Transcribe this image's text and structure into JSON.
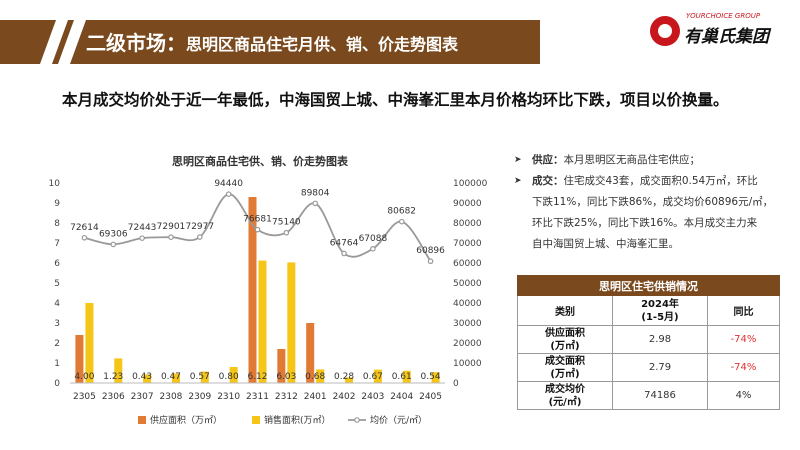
{
  "header": {
    "title_main": "二级市场：",
    "title_sub": "思明区商品住宅月供、销、价走势图表"
  },
  "brand": {
    "name_en": "YOURCHOICE GROUP",
    "name_cn": "有巢氏集团"
  },
  "headline": "本月成交均价处于近一年最低，中海国贸上城、中海峯汇里本月价格均环比下跌，项目以价换量。",
  "notes": {
    "supply_label": "供应：",
    "supply_text": "本月思明区无商品住宅供应；",
    "deal_label": "成交：",
    "deal_lines": [
      "住宅成交43套，成交面积0.54万㎡，环比",
      "下跌11%，同比下跌86%，成交均价60896元/㎡，",
      "环比下跌25%，同比下跌16%。本月成交主力来",
      "自中海国贸上城、中海峯汇里。"
    ]
  },
  "table": {
    "title": "思明区住宅供销情况",
    "headers": [
      "类别",
      "2024年\n(1-5月)",
      "同比"
    ],
    "rows": [
      {
        "label": "供应面积\n(万㎡)",
        "value": "2.98",
        "yoy": "-74%"
      },
      {
        "label": "成交面积\n(万㎡)",
        "value": "2.79",
        "yoy": "-74%"
      },
      {
        "label": "成交均价\n(元/㎡)",
        "value": "74186",
        "yoy": "4%"
      }
    ]
  },
  "chart_data": {
    "type": "bar",
    "title": "思明区商品住宅供、销、价走势图表",
    "categories": [
      "2305",
      "2306",
      "2307",
      "2308",
      "2309",
      "2310",
      "2311",
      "2312",
      "2401",
      "2402",
      "2403",
      "2404",
      "2405"
    ],
    "series": [
      {
        "name": "供应面积（万㎡）",
        "type": "bar",
        "axis": "left",
        "color": "#e07a35",
        "values": [
          2.4,
          0,
          0,
          0,
          0,
          0,
          9.3,
          1.7,
          3.0,
          0,
          0,
          0,
          0
        ]
      },
      {
        "name": "销售面积(万㎡）",
        "type": "bar",
        "axis": "left",
        "color": "#f5c518",
        "values": [
          4.0,
          1.23,
          0.43,
          0.47,
          0.57,
          0.8,
          6.12,
          6.03,
          0.68,
          0.28,
          0.67,
          0.61,
          0.54
        ]
      },
      {
        "name": "均价（元/㎡）",
        "type": "line",
        "axis": "right",
        "color": "#999999",
        "values": [
          72614,
          69306,
          72443,
          72901,
          72977,
          94440,
          76681,
          75140,
          89804,
          64764,
          67088,
          80682,
          60896
        ]
      }
    ],
    "bar_labels": [
      "4.00",
      "1.23",
      "0.43",
      "0.47",
      "0.57",
      "0.80",
      "6.12",
      "6.03",
      "0.68",
      "0.28",
      "0.67",
      "0.61",
      "0.54"
    ],
    "line_labels": [
      "72614",
      "69306",
      "72443",
      "72901",
      "72977",
      "94440",
      "76681",
      "75140",
      "89804",
      "64764",
      "67088",
      "80682",
      "60896"
    ],
    "ylim_left": [
      0,
      10
    ],
    "yticks_left": [
      "0",
      "1",
      "2",
      "3",
      "4",
      "5",
      "6",
      "7",
      "8",
      "9",
      "10"
    ],
    "ylim_right": [
      0,
      100000
    ],
    "yticks_right": [
      "0",
      "10000",
      "20000",
      "30000",
      "40000",
      "50000",
      "60000",
      "70000",
      "80000",
      "90000",
      "100000"
    ],
    "legend_position": "bottom",
    "grid": false
  }
}
